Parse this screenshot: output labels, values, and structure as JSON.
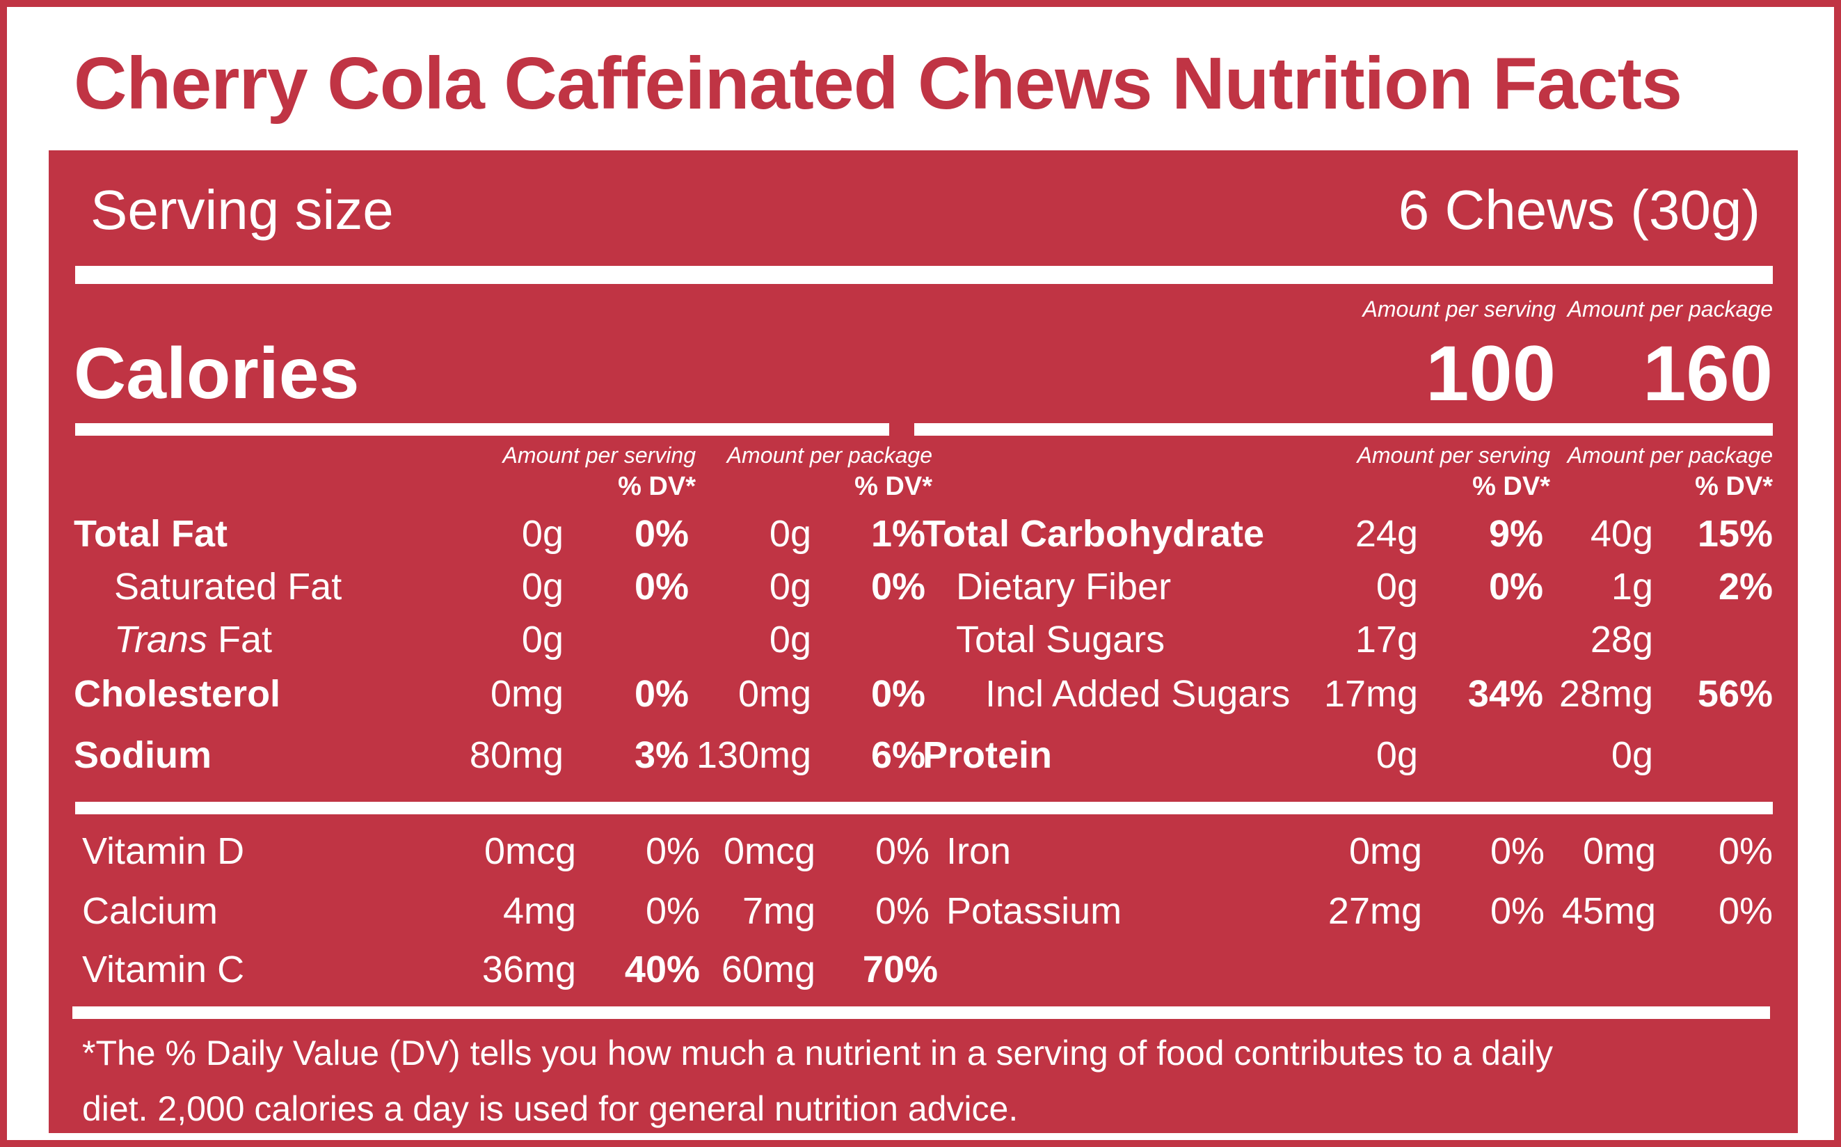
{
  "title": "Cherry Cola Caffeinated Chews Nutrition Facts",
  "serving": {
    "label": "Serving size",
    "value": "6 Chews (30g)"
  },
  "calories": {
    "label": "Calories",
    "per_serving_header": "Amount per serving",
    "per_package_header": "Amount per package",
    "per_serving": "100",
    "per_package": "160"
  },
  "headers": {
    "per_serving": "Amount per serving",
    "per_package": "Amount per package",
    "dv": "% DV*"
  },
  "left_nutrients": [
    {
      "name": "Total Fat",
      "serv_amt": "0g",
      "serv_dv": "0%",
      "pkg_amt": "0g",
      "pkg_dv": "1%"
    },
    {
      "name": "Saturated Fat",
      "serv_amt": "0g",
      "serv_dv": "0%",
      "pkg_amt": "0g",
      "pkg_dv": "0%"
    },
    {
      "name_italic": "Trans",
      "name_rest": " Fat",
      "serv_amt": "0g",
      "serv_dv": "",
      "pkg_amt": "0g",
      "pkg_dv": ""
    },
    {
      "name": "Cholesterol",
      "serv_amt": "0mg",
      "serv_dv": "0%",
      "pkg_amt": "0mg",
      "pkg_dv": "0%"
    },
    {
      "name": "Sodium",
      "serv_amt": "80mg",
      "serv_dv": "3%",
      "pkg_amt": "130mg",
      "pkg_dv": "6%"
    }
  ],
  "right_nutrients": [
    {
      "name": "Total Carbohydrate",
      "serv_amt": "24g",
      "serv_dv": "9%",
      "pkg_amt": "40g",
      "pkg_dv": "15%"
    },
    {
      "name": "Dietary Fiber",
      "serv_amt": "0g",
      "serv_dv": "0%",
      "pkg_amt": "1g",
      "pkg_dv": "2%"
    },
    {
      "name": "Total Sugars",
      "serv_amt": "17g",
      "serv_dv": "",
      "pkg_amt": "28g",
      "pkg_dv": ""
    },
    {
      "name": "Incl Added Sugars",
      "serv_amt": "17mg",
      "serv_dv": "34%",
      "pkg_amt": "28mg",
      "pkg_dv": "56%"
    },
    {
      "name": "Protein",
      "serv_amt": "0g",
      "serv_dv": "",
      "pkg_amt": "0g",
      "pkg_dv": ""
    }
  ],
  "vitamins_left": [
    {
      "name": "Vitamin D",
      "serv_amt": "0mcg",
      "serv_dv": "0%",
      "pkg_amt": "0mcg",
      "pkg_dv": "0%"
    },
    {
      "name": "Calcium",
      "serv_amt": "4mg",
      "serv_dv": "0%",
      "pkg_amt": "7mg",
      "pkg_dv": "0%"
    },
    {
      "name": "Vitamin C",
      "serv_amt": "36mg",
      "serv_dv": "40%",
      "pkg_amt": "60mg",
      "pkg_dv": "70%"
    }
  ],
  "vitamins_right": [
    {
      "name": "Iron",
      "serv_amt": "0mg",
      "serv_dv": "0%",
      "pkg_amt": "0mg",
      "pkg_dv": "0%"
    },
    {
      "name": "Potassium",
      "serv_amt": "27mg",
      "serv_dv": "0%",
      "pkg_amt": "45mg",
      "pkg_dv": "0%"
    }
  ],
  "footnote": {
    "line1": "*The % Daily Value (DV) tells you how much a nutrient in a serving of food contributes to a daily",
    "line2": "diet. 2,000 calories a day is used for general nutrition advice."
  },
  "colors": {
    "background": "#c03444",
    "text": "#ffffff",
    "title": "#c03444"
  }
}
